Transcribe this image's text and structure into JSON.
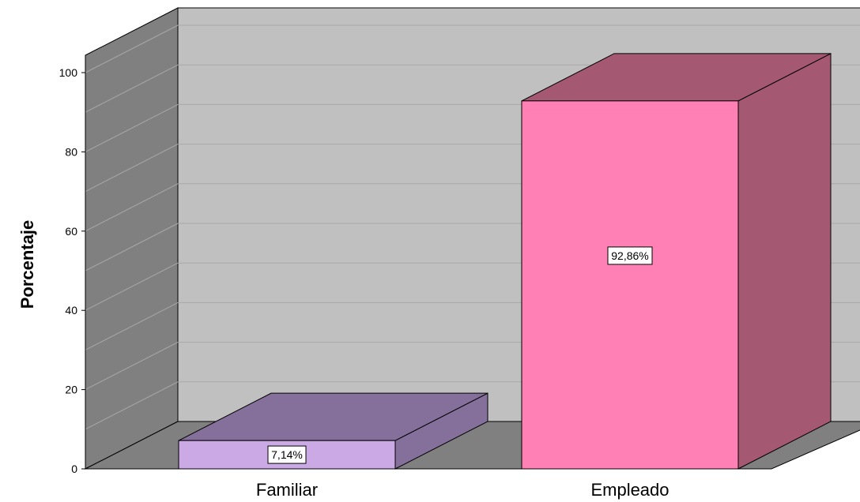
{
  "chart_data": {
    "type": "bar",
    "title": "",
    "xlabel": "",
    "ylabel": "Porcentaje",
    "ylim": [
      0,
      100
    ],
    "yticks": [
      0,
      20,
      40,
      60,
      80,
      100
    ],
    "categories": [
      "Familiar",
      "Empleado"
    ],
    "values": [
      7.14,
      92.86
    ],
    "value_labels": [
      "7,14%",
      "92,86%"
    ],
    "grid": true,
    "style": "3d",
    "colors": {
      "Familiar": {
        "front": "#CBA9E5",
        "top": "#85709B",
        "side": "#85709B"
      },
      "Empleado": {
        "front": "#FF80B4",
        "top": "#A45871",
        "side": "#A45871"
      },
      "back_wall": "#C0C0C0",
      "side_wall": "#808080",
      "floor": "#808080",
      "grid_line": "#a8a8a8"
    }
  }
}
